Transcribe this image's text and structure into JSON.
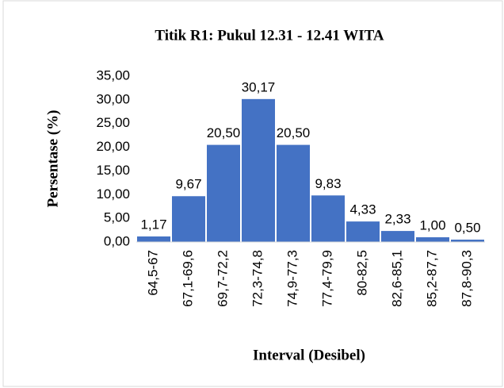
{
  "chart_data": {
    "type": "bar",
    "title": "Titik R1: Pukul 12.31 - 12.41 WITA",
    "x_label": "Interval (Desibel)",
    "y_label": "Persentase (%)",
    "categories": [
      "64,5-67",
      "67,1-69,6",
      "69,7-72,2",
      "72,3-74,8",
      "74,9-77,3",
      "77,4-79,9",
      "80-82,5",
      "82,6-85,1",
      "85,2-87,7",
      "87,8-90,3"
    ],
    "values": [
      1.17,
      9.67,
      20.5,
      30.17,
      20.5,
      9.83,
      4.33,
      2.33,
      1.0,
      0.5
    ],
    "value_labels": [
      "1,17",
      "9,67",
      "20,50",
      "30,17",
      "20,50",
      "9,83",
      "4,33",
      "2,33",
      "1,00",
      "0,50"
    ],
    "color": "#4472c4",
    "ylim": [
      0,
      35
    ],
    "yticks": [
      {
        "value": 0,
        "label": "0,00"
      },
      {
        "value": 5,
        "label": "5,00"
      },
      {
        "value": 10,
        "label": "10,00"
      },
      {
        "value": 15,
        "label": "15,00"
      },
      {
        "value": 20,
        "label": "20,00"
      },
      {
        "value": 25,
        "label": "25,00"
      },
      {
        "value": 30,
        "label": "30,00"
      },
      {
        "value": 35,
        "label": "35,00"
      }
    ],
    "grid": false
  }
}
